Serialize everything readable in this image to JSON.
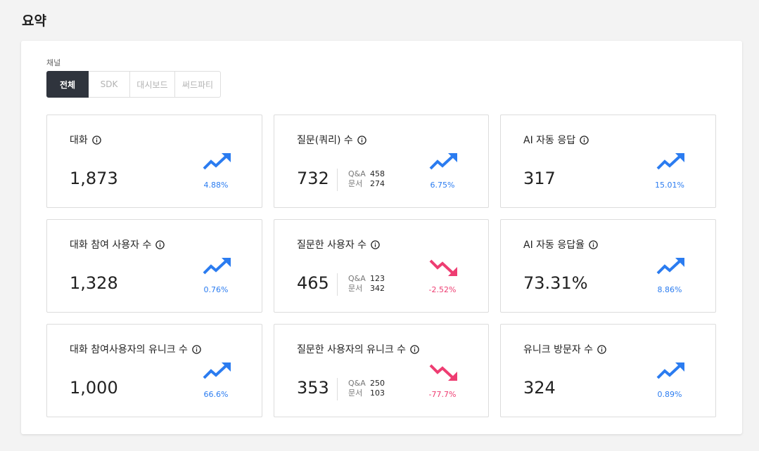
{
  "header": {
    "title": "요약"
  },
  "filter": {
    "label": "채널",
    "tabs": [
      {
        "label": "전체",
        "active": true
      },
      {
        "label": "SDK",
        "active": false
      },
      {
        "label": "대시보드",
        "active": false
      },
      {
        "label": "써드파티",
        "active": false
      }
    ]
  },
  "colors": {
    "up": "#2b7cf0",
    "down": "#ee3d72",
    "active_tab": "#2f343d"
  },
  "cards": [
    {
      "title": "대화",
      "value": "1,873",
      "trend": "up",
      "change": "4.88%"
    },
    {
      "title": "질문(쿼리) 수",
      "value": "732",
      "trend": "up",
      "change": "6.75%",
      "breakdown": [
        {
          "label": "Q&A",
          "value": "458"
        },
        {
          "label": "문서",
          "value": "274"
        }
      ]
    },
    {
      "title": "AI 자동 응답",
      "value": "317",
      "trend": "up",
      "change": "15.01%"
    },
    {
      "title": "대화 참여 사용자 수",
      "value": "1,328",
      "trend": "up",
      "change": "0.76%"
    },
    {
      "title": "질문한 사용자 수",
      "value": "465",
      "trend": "down",
      "change": "-2.52%",
      "breakdown": [
        {
          "label": "Q&A",
          "value": "123"
        },
        {
          "label": "문서",
          "value": "342"
        }
      ]
    },
    {
      "title": "AI 자동 응답율",
      "value": "73.31%",
      "trend": "up",
      "change": "8.86%"
    },
    {
      "title": "대화 참여사용자의 유니크 수",
      "value": "1,000",
      "trend": "up",
      "change": "66.6%"
    },
    {
      "title": "질문한 사용자의 유니크 수",
      "value": "353",
      "trend": "down",
      "change": "-77.7%",
      "breakdown": [
        {
          "label": "Q&A",
          "value": "250"
        },
        {
          "label": "문서",
          "value": "103"
        }
      ]
    },
    {
      "title": "유니크 방문자 수",
      "value": "324",
      "trend": "up",
      "change": "0.89%"
    }
  ]
}
